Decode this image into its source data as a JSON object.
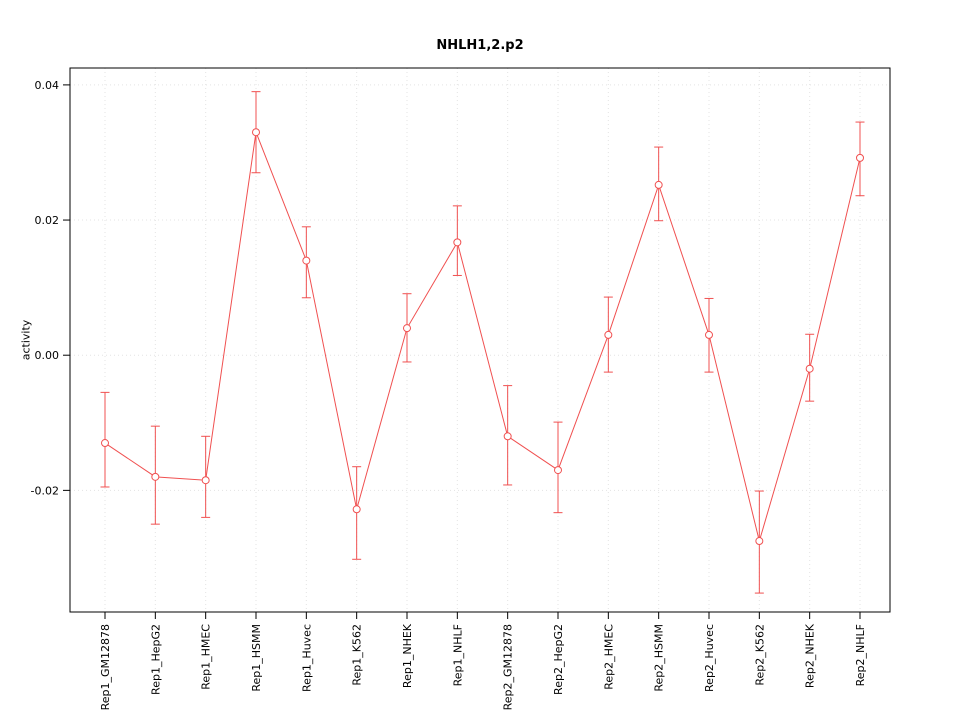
{
  "chart_data": {
    "type": "line",
    "title": "NHLH1,2.p2",
    "ylabel": "activity",
    "xlabel": "",
    "categories": [
      "Rep1_GM12878",
      "Rep1_HepG2",
      "Rep1_HMEC",
      "Rep1_HSMM",
      "Rep1_Huvec",
      "Rep1_K562",
      "Rep1_NHEK",
      "Rep1_NHLF",
      "Rep2_GM12878",
      "Rep2_HepG2",
      "Rep2_HMEC",
      "Rep2_HSMM",
      "Rep2_Huvec",
      "Rep2_K562",
      "Rep2_NHEK",
      "Rep2_NHLF"
    ],
    "values": [
      -0.013,
      -0.018,
      -0.0185,
      0.033,
      0.014,
      -0.0228,
      0.004,
      0.0167,
      -0.012,
      -0.017,
      0.003,
      0.0252,
      0.003,
      -0.0275,
      -0.002,
      0.0292
    ],
    "error_low": [
      -0.0195,
      -0.025,
      -0.024,
      0.027,
      0.0085,
      -0.0302,
      -0.001,
      0.0118,
      -0.0192,
      -0.0233,
      -0.0025,
      0.0199,
      -0.0025,
      -0.0352,
      -0.0068,
      0.0236
    ],
    "error_high": [
      -0.0055,
      -0.0105,
      -0.012,
      0.039,
      0.019,
      -0.0165,
      0.0091,
      0.0221,
      -0.0045,
      -0.0099,
      0.0086,
      0.0308,
      0.0084,
      -0.0201,
      0.0031,
      0.0345
    ],
    "ylim": [
      -0.038,
      0.0425
    ],
    "ytick_values": [
      -0.02,
      0,
      0.02,
      0.04
    ],
    "ytick_labels": [
      "-0.02",
      "0.00",
      "0.02",
      "0.04"
    ],
    "line_color": "#f05050",
    "grid_color": "#e3e3e3",
    "axis_color": "#000000",
    "grid": true,
    "legend": "none"
  }
}
